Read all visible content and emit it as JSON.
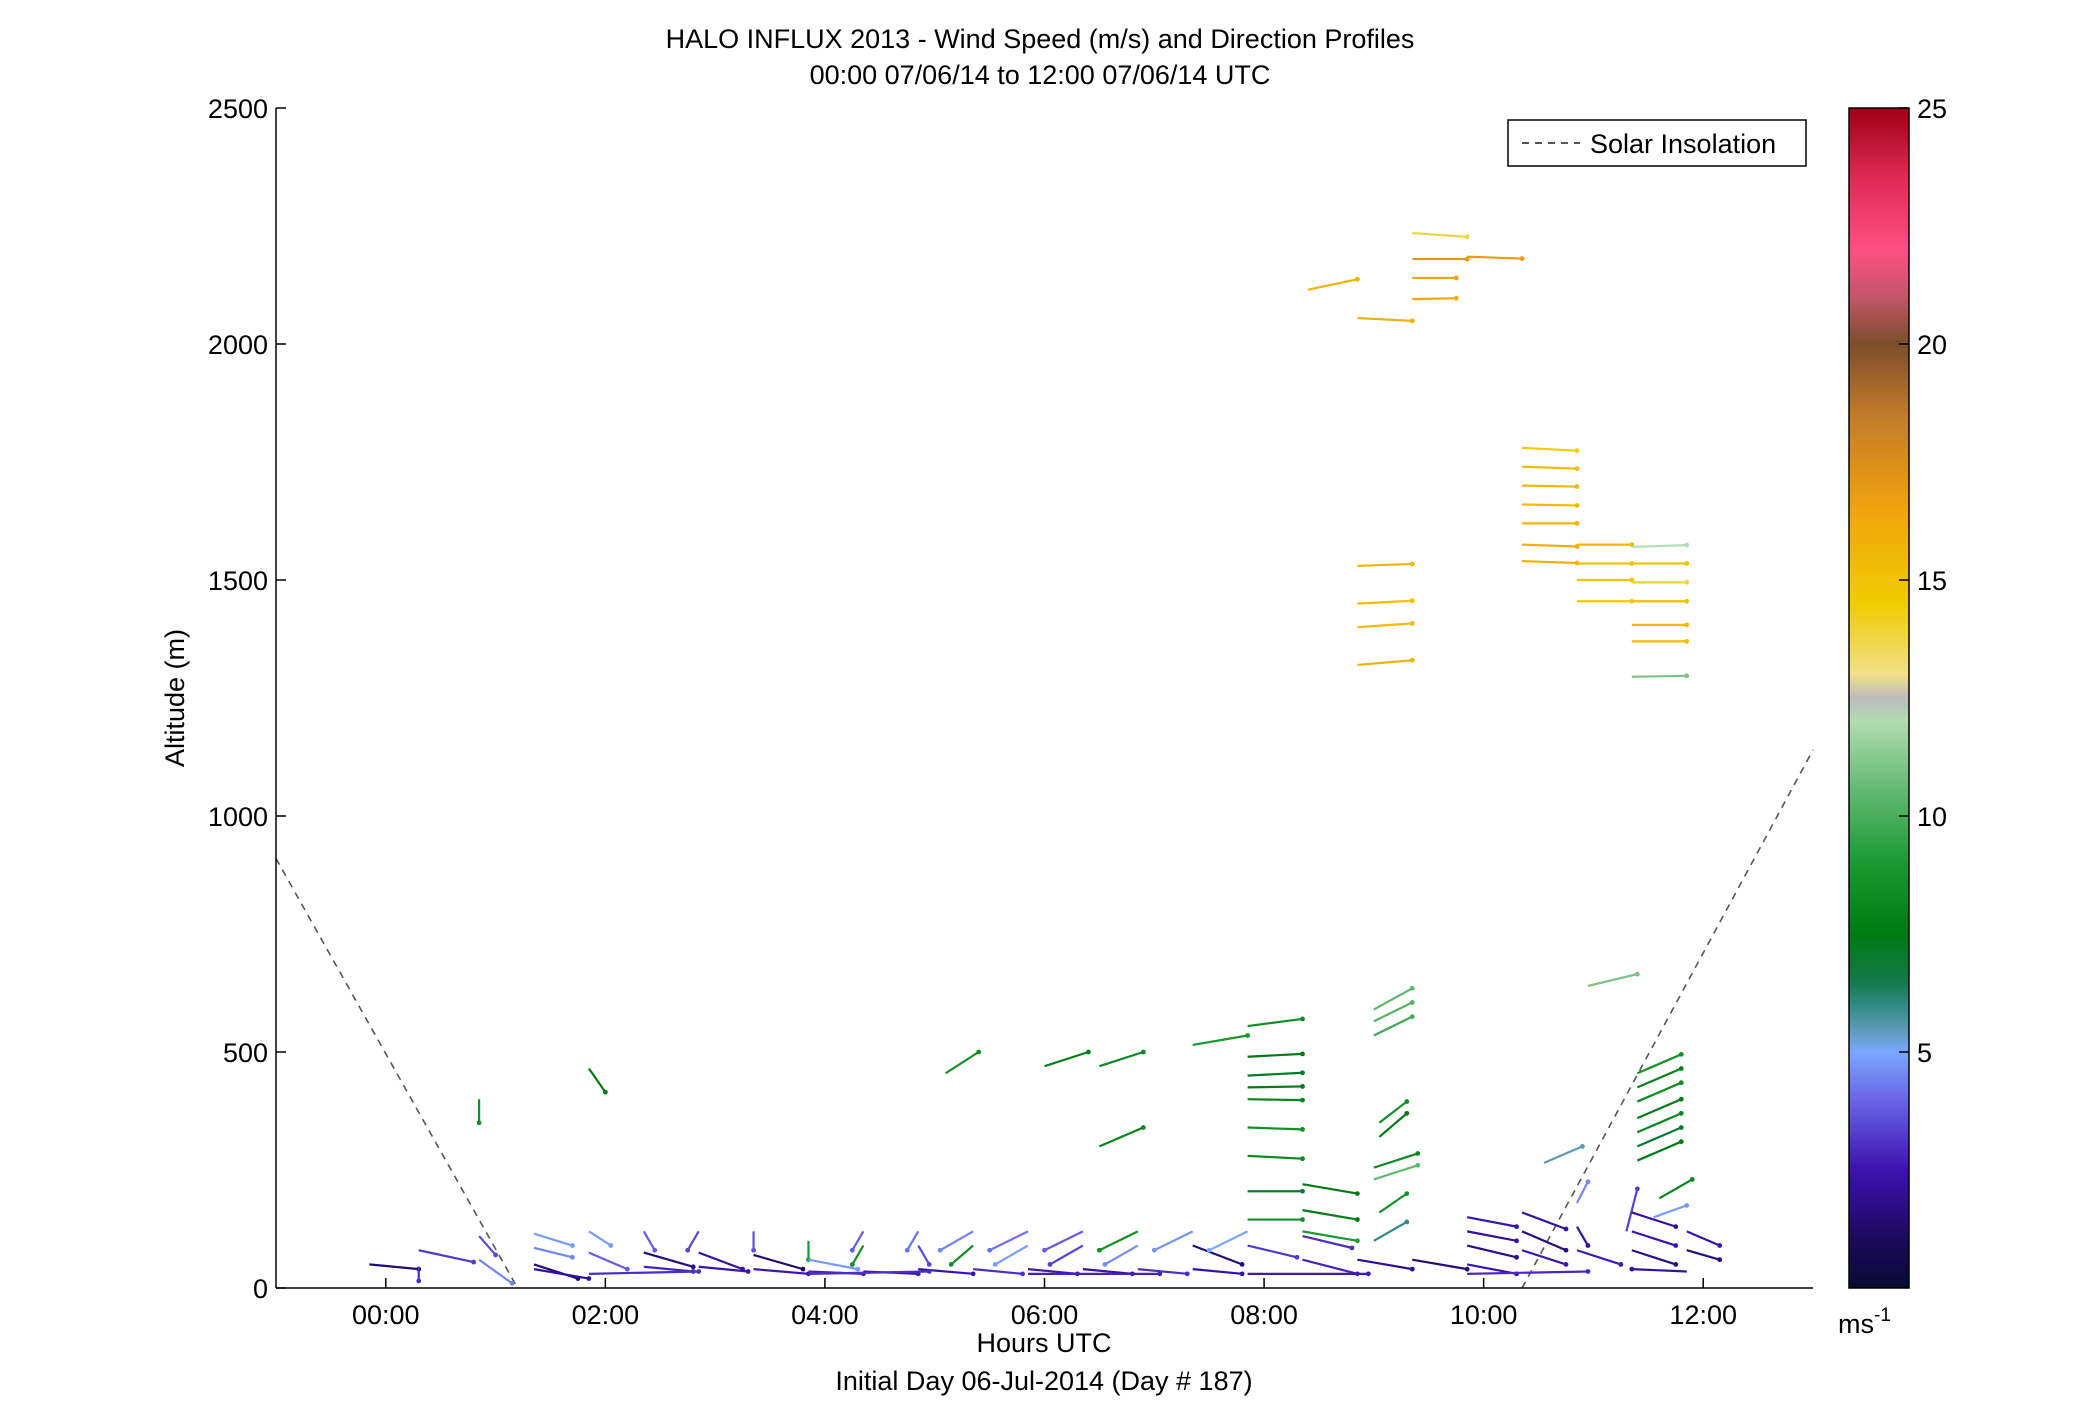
{
  "chart_data": {
    "type": "wind-barb-profile",
    "title": "HALO INFLUX 2013 - Wind Speed (m/s) and Direction Profiles",
    "subtitle": "00:00 07/06/14 to 12:00 07/06/14  UTC",
    "xlabel": "Hours UTC",
    "xlabel2": "Initial Day 06-Jul-2014 (Day # 187)",
    "ylabel": "Altitude (m)",
    "xlim_hours": [
      -1.0,
      13.0
    ],
    "ylim": [
      0,
      2500
    ],
    "x_ticks": [
      {
        "value": 0,
        "label": "00:00"
      },
      {
        "value": 2,
        "label": "02:00"
      },
      {
        "value": 4,
        "label": "04:00"
      },
      {
        "value": 6,
        "label": "06:00"
      },
      {
        "value": 8,
        "label": "08:00"
      },
      {
        "value": 10,
        "label": "10:00"
      },
      {
        "value": 12,
        "label": "12:00"
      }
    ],
    "y_ticks": [
      0,
      500,
      1000,
      1500,
      2000,
      2500
    ],
    "colorbar": {
      "min": 0,
      "max": 25,
      "ticks": [
        5,
        10,
        15,
        20,
        25
      ],
      "unit_label": "ms",
      "unit_exp": "-1"
    },
    "legend": {
      "label": "Solar Insolation",
      "position": "top-right",
      "style": "dashed",
      "color": "#555555"
    },
    "solar_insolation": [
      {
        "x": -1.0,
        "y": 910
      },
      {
        "x": 1.2,
        "y": 0
      },
      {
        "x": 10.35,
        "y": 0
      },
      {
        "x": 13.0,
        "y": 1140
      }
    ],
    "vectors": [
      {
        "t": 8.85,
        "alt": 2055,
        "dx": 0.5,
        "dy": -6,
        "spd": 15.8
      },
      {
        "t": 8.4,
        "alt": 2115,
        "dx": 0.45,
        "dy": 22,
        "spd": 15.8
      },
      {
        "t": 9.35,
        "alt": 2235,
        "dx": 0.5,
        "dy": -8,
        "spd": 13.8
      },
      {
        "t": 9.35,
        "alt": 2180,
        "dx": 0.5,
        "dy": 0,
        "spd": 17.0
      },
      {
        "t": 9.35,
        "alt": 2140,
        "dx": 0.4,
        "dy": 0,
        "spd": 16.5
      },
      {
        "t": 9.35,
        "alt": 2095,
        "dx": 0.4,
        "dy": 2,
        "spd": 16.0
      },
      {
        "t": 9.85,
        "alt": 2185,
        "dx": 0.5,
        "dy": -4,
        "spd": 16.8
      },
      {
        "t": 10.35,
        "alt": 1780,
        "dx": 0.5,
        "dy": -6,
        "spd": 14.5
      },
      {
        "t": 10.35,
        "alt": 1740,
        "dx": 0.5,
        "dy": -4,
        "spd": 15.2
      },
      {
        "t": 10.35,
        "alt": 1700,
        "dx": 0.5,
        "dy": -2,
        "spd": 15.5
      },
      {
        "t": 10.35,
        "alt": 1660,
        "dx": 0.5,
        "dy": -2,
        "spd": 15.3
      },
      {
        "t": 10.35,
        "alt": 1620,
        "dx": 0.5,
        "dy": 0,
        "spd": 15.6
      },
      {
        "t": 10.35,
        "alt": 1575,
        "dx": 0.5,
        "dy": -4,
        "spd": 16.0
      },
      {
        "t": 10.35,
        "alt": 1540,
        "dx": 0.5,
        "dy": -4,
        "spd": 15.8
      },
      {
        "t": 10.85,
        "alt": 1575,
        "dx": 0.5,
        "dy": 0,
        "spd": 15.5
      },
      {
        "t": 10.85,
        "alt": 1535,
        "dx": 0.5,
        "dy": 0,
        "spd": 15.0
      },
      {
        "t": 10.85,
        "alt": 1500,
        "dx": 0.5,
        "dy": 0,
        "spd": 14.8
      },
      {
        "t": 10.85,
        "alt": 1455,
        "dx": 0.5,
        "dy": 0,
        "spd": 14.6
      },
      {
        "t": 11.35,
        "alt": 1570,
        "dx": 0.5,
        "dy": 4,
        "spd": 12.0
      },
      {
        "t": 11.35,
        "alt": 1535,
        "dx": 0.5,
        "dy": 0,
        "spd": 15.0
      },
      {
        "t": 11.35,
        "alt": 1495,
        "dx": 0.5,
        "dy": 0,
        "spd": 14.0
      },
      {
        "t": 11.35,
        "alt": 1455,
        "dx": 0.5,
        "dy": 0,
        "spd": 15.2
      },
      {
        "t": 11.35,
        "alt": 1405,
        "dx": 0.5,
        "dy": 0,
        "spd": 15.5
      },
      {
        "t": 11.35,
        "alt": 1370,
        "dx": 0.5,
        "dy": 0,
        "spd": 15.3
      },
      {
        "t": 11.35,
        "alt": 1295,
        "dx": 0.5,
        "dy": 2,
        "spd": 11.0
      },
      {
        "t": 8.85,
        "alt": 1530,
        "dx": 0.5,
        "dy": 4,
        "spd": 15.5
      },
      {
        "t": 8.85,
        "alt": 1450,
        "dx": 0.5,
        "dy": 6,
        "spd": 15.2
      },
      {
        "t": 8.85,
        "alt": 1400,
        "dx": 0.5,
        "dy": 8,
        "spd": 15.4
      },
      {
        "t": 8.85,
        "alt": 1320,
        "dx": 0.5,
        "dy": 10,
        "spd": 15.7
      },
      {
        "t": 0.85,
        "alt": 400,
        "dx": 0.0,
        "dy": -50,
        "spd": 8.5
      },
      {
        "t": 1.85,
        "alt": 465,
        "dx": 0.15,
        "dy": -50,
        "spd": 7.5
      },
      {
        "t": 5.1,
        "alt": 455,
        "dx": 0.3,
        "dy": 45,
        "spd": 8.5
      },
      {
        "t": 6.0,
        "alt": 470,
        "dx": 0.4,
        "dy": 30,
        "spd": 7.8
      },
      {
        "t": 6.5,
        "alt": 470,
        "dx": 0.4,
        "dy": 30,
        "spd": 8.2
      },
      {
        "t": 7.35,
        "alt": 515,
        "dx": 0.5,
        "dy": 20,
        "spd": 8.8
      },
      {
        "t": 6.5,
        "alt": 300,
        "dx": 0.4,
        "dy": 40,
        "spd": 8.0
      },
      {
        "t": 7.85,
        "alt": 555,
        "dx": 0.5,
        "dy": 15,
        "spd": 8.4
      },
      {
        "t": 7.85,
        "alt": 490,
        "dx": 0.5,
        "dy": 6,
        "spd": 7.5
      },
      {
        "t": 7.85,
        "alt": 450,
        "dx": 0.5,
        "dy": 6,
        "spd": 7.2
      },
      {
        "t": 7.85,
        "alt": 425,
        "dx": 0.5,
        "dy": 2,
        "spd": 7.6
      },
      {
        "t": 7.85,
        "alt": 400,
        "dx": 0.5,
        "dy": -2,
        "spd": 8.0
      },
      {
        "t": 7.85,
        "alt": 340,
        "dx": 0.5,
        "dy": -4,
        "spd": 8.5
      },
      {
        "t": 7.85,
        "alt": 280,
        "dx": 0.5,
        "dy": -6,
        "spd": 8.2
      },
      {
        "t": 7.85,
        "alt": 205,
        "dx": 0.5,
        "dy": 0,
        "spd": 7.0
      },
      {
        "t": 7.85,
        "alt": 145,
        "dx": 0.5,
        "dy": 0,
        "spd": 8.6
      },
      {
        "t": 8.35,
        "alt": 220,
        "dx": 0.5,
        "dy": -20,
        "spd": 7.4
      },
      {
        "t": 8.35,
        "alt": 165,
        "dx": 0.5,
        "dy": -20,
        "spd": 7.7
      },
      {
        "t": 8.35,
        "alt": 120,
        "dx": 0.5,
        "dy": -20,
        "spd": 9.0
      },
      {
        "t": 9.0,
        "alt": 590,
        "dx": 0.35,
        "dy": 45,
        "spd": 10.5
      },
      {
        "t": 9.0,
        "alt": 565,
        "dx": 0.35,
        "dy": 40,
        "spd": 10.2
      },
      {
        "t": 9.0,
        "alt": 535,
        "dx": 0.35,
        "dy": 40,
        "spd": 9.8
      },
      {
        "t": 9.05,
        "alt": 350,
        "dx": 0.25,
        "dy": 45,
        "spd": 8.5
      },
      {
        "t": 9.05,
        "alt": 320,
        "dx": 0.25,
        "dy": 50,
        "spd": 7.5
      },
      {
        "t": 9.0,
        "alt": 255,
        "dx": 0.4,
        "dy": 30,
        "spd": 8.2
      },
      {
        "t": 9.0,
        "alt": 230,
        "dx": 0.4,
        "dy": 30,
        "spd": 10.5
      },
      {
        "t": 9.05,
        "alt": 160,
        "dx": 0.25,
        "dy": 40,
        "spd": 8.6
      },
      {
        "t": 9.0,
        "alt": 100,
        "dx": 0.3,
        "dy": 40,
        "spd": 6.0
      },
      {
        "t": 10.95,
        "alt": 640,
        "dx": 0.45,
        "dy": 25,
        "spd": 11.0
      },
      {
        "t": 10.55,
        "alt": 265,
        "dx": 0.35,
        "dy": 35,
        "spd": 5.5
      },
      {
        "t": 10.85,
        "alt": 180,
        "dx": 0.1,
        "dy": 45,
        "spd": 4.5
      },
      {
        "t": 11.4,
        "alt": 455,
        "dx": 0.4,
        "dy": 40,
        "spd": 8.6
      },
      {
        "t": 11.4,
        "alt": 425,
        "dx": 0.4,
        "dy": 40,
        "spd": 7.8
      },
      {
        "t": 11.4,
        "alt": 395,
        "dx": 0.4,
        "dy": 40,
        "spd": 8.3
      },
      {
        "t": 11.4,
        "alt": 360,
        "dx": 0.4,
        "dy": 40,
        "spd": 7.4
      },
      {
        "t": 11.4,
        "alt": 330,
        "dx": 0.4,
        "dy": 40,
        "spd": 8.0
      },
      {
        "t": 11.4,
        "alt": 300,
        "dx": 0.4,
        "dy": 40,
        "spd": 7.0
      },
      {
        "t": 11.4,
        "alt": 270,
        "dx": 0.4,
        "dy": 40,
        "spd": 7.5
      },
      {
        "t": 11.6,
        "alt": 190,
        "dx": 0.3,
        "dy": 40,
        "spd": 8.0
      },
      {
        "t": 11.55,
        "alt": 150,
        "dx": 0.3,
        "dy": 25,
        "spd": 4.8
      },
      {
        "t": 11.3,
        "alt": 120,
        "dx": 0.1,
        "dy": 90,
        "spd": 3.3
      },
      {
        "t": -0.15,
        "alt": 50,
        "dx": 0.45,
        "dy": -10,
        "spd": 1.3
      },
      {
        "t": 0.3,
        "alt": 45,
        "dx": 0.0,
        "dy": -30,
        "spd": 3.0
      },
      {
        "t": 0.3,
        "alt": 80,
        "dx": 0.5,
        "dy": -25,
        "spd": 3.2
      },
      {
        "t": 0.85,
        "alt": 110,
        "dx": 0.15,
        "dy": -40,
        "spd": 3.5
      },
      {
        "t": 0.85,
        "alt": 60,
        "dx": 0.3,
        "dy": -50,
        "spd": 4.5
      },
      {
        "t": 1.35,
        "alt": 115,
        "dx": 0.35,
        "dy": -25,
        "spd": 4.8
      },
      {
        "t": 1.35,
        "alt": 85,
        "dx": 0.35,
        "dy": -20,
        "spd": 4.5
      },
      {
        "t": 1.35,
        "alt": 50,
        "dx": 0.4,
        "dy": -30,
        "spd": 1.5
      },
      {
        "t": 1.85,
        "alt": 120,
        "dx": 0.2,
        "dy": -30,
        "spd": 4.8
      },
      {
        "t": 1.85,
        "alt": 75,
        "dx": 0.35,
        "dy": -35,
        "spd": 3.8
      },
      {
        "t": 1.35,
        "alt": 40,
        "dx": 0.5,
        "dy": -20,
        "spd": 2.2
      },
      {
        "t": 2.35,
        "alt": 120,
        "dx": 0.1,
        "dy": -40,
        "spd": 3.8
      },
      {
        "t": 2.35,
        "alt": 75,
        "dx": 0.45,
        "dy": -30,
        "spd": 1.5
      },
      {
        "t": 2.35,
        "alt": 45,
        "dx": 0.45,
        "dy": -10,
        "spd": 2.8
      },
      {
        "t": 2.85,
        "alt": 120,
        "dx": -0.1,
        "dy": -40,
        "spd": 3.4
      },
      {
        "t": 2.85,
        "alt": 75,
        "dx": 0.4,
        "dy": -35,
        "spd": 2.2
      },
      {
        "t": 2.85,
        "alt": 45,
        "dx": 0.45,
        "dy": -10,
        "spd": 2.5
      },
      {
        "t": 3.35,
        "alt": 120,
        "dx": 0.0,
        "dy": -40,
        "spd": 3.6
      },
      {
        "t": 3.35,
        "alt": 70,
        "dx": 0.45,
        "dy": -30,
        "spd": 1.3
      },
      {
        "t": 3.35,
        "alt": 40,
        "dx": 0.5,
        "dy": -10,
        "spd": 2.5
      },
      {
        "t": 3.85,
        "alt": 100,
        "dx": 0.0,
        "dy": -40,
        "spd": 9.0
      },
      {
        "t": 3.85,
        "alt": 60,
        "dx": 0.45,
        "dy": -20,
        "spd": 4.8
      },
      {
        "t": 3.85,
        "alt": 35,
        "dx": 0.5,
        "dy": -5,
        "spd": 2.8
      },
      {
        "t": 4.35,
        "alt": 120,
        "dx": -0.1,
        "dy": -40,
        "spd": 3.8
      },
      {
        "t": 4.35,
        "alt": 90,
        "dx": -0.1,
        "dy": -40,
        "spd": 8.5
      },
      {
        "t": 4.35,
        "alt": 35,
        "dx": 0.5,
        "dy": -5,
        "spd": 2.6
      },
      {
        "t": 4.85,
        "alt": 120,
        "dx": -0.1,
        "dy": -40,
        "spd": 4.2
      },
      {
        "t": 4.85,
        "alt": 90,
        "dx": 0.1,
        "dy": -40,
        "spd": 3.5
      },
      {
        "t": 4.85,
        "alt": 40,
        "dx": 0.5,
        "dy": -10,
        "spd": 2.5
      },
      {
        "t": 5.35,
        "alt": 120,
        "dx": -0.3,
        "dy": -40,
        "spd": 4.5
      },
      {
        "t": 5.35,
        "alt": 90,
        "dx": -0.2,
        "dy": -40,
        "spd": 8.5
      },
      {
        "t": 5.35,
        "alt": 40,
        "dx": 0.45,
        "dy": -10,
        "spd": 3.0
      },
      {
        "t": 5.85,
        "alt": 120,
        "dx": -0.35,
        "dy": -40,
        "spd": 4.2
      },
      {
        "t": 5.85,
        "alt": 90,
        "dx": -0.3,
        "dy": -40,
        "spd": 4.8
      },
      {
        "t": 5.85,
        "alt": 40,
        "dx": 0.45,
        "dy": -10,
        "spd": 2.6
      },
      {
        "t": 6.35,
        "alt": 120,
        "dx": -0.35,
        "dy": -40,
        "spd": 3.8
      },
      {
        "t": 6.35,
        "alt": 90,
        "dx": -0.3,
        "dy": -40,
        "spd": 3.3
      },
      {
        "t": 6.35,
        "alt": 40,
        "dx": 0.45,
        "dy": -10,
        "spd": 2.3
      },
      {
        "t": 6.85,
        "alt": 120,
        "dx": -0.35,
        "dy": -40,
        "spd": 8.5
      },
      {
        "t": 6.85,
        "alt": 90,
        "dx": -0.3,
        "dy": -40,
        "spd": 4.6
      },
      {
        "t": 6.85,
        "alt": 40,
        "dx": 0.45,
        "dy": -10,
        "spd": 3.0
      },
      {
        "t": 7.35,
        "alt": 120,
        "dx": -0.35,
        "dy": -40,
        "spd": 4.7
      },
      {
        "t": 7.35,
        "alt": 90,
        "dx": 0.45,
        "dy": -40,
        "spd": 1.5
      },
      {
        "t": 7.35,
        "alt": 40,
        "dx": 0.45,
        "dy": -10,
        "spd": 2.3
      },
      {
        "t": 7.85,
        "alt": 120,
        "dx": -0.35,
        "dy": -40,
        "spd": 5.0
      },
      {
        "t": 7.85,
        "alt": 90,
        "dx": 0.45,
        "dy": -25,
        "spd": 3.2
      },
      {
        "t": 8.35,
        "alt": 110,
        "dx": 0.45,
        "dy": -25,
        "spd": 3.0
      },
      {
        "t": 8.35,
        "alt": 60,
        "dx": 0.5,
        "dy": -30,
        "spd": 2.8
      },
      {
        "t": 8.85,
        "alt": 60,
        "dx": 0.5,
        "dy": -20,
        "spd": 2.0
      },
      {
        "t": 9.35,
        "alt": 60,
        "dx": 0.5,
        "dy": -20,
        "spd": 1.5
      },
      {
        "t": 9.85,
        "alt": 150,
        "dx": 0.45,
        "dy": -20,
        "spd": 2.5
      },
      {
        "t": 9.85,
        "alt": 120,
        "dx": 0.45,
        "dy": -20,
        "spd": 2.2
      },
      {
        "t": 9.85,
        "alt": 90,
        "dx": 0.45,
        "dy": -25,
        "spd": 1.8
      },
      {
        "t": 9.85,
        "alt": 50,
        "dx": 0.45,
        "dy": -20,
        "spd": 2.5
      },
      {
        "t": 10.35,
        "alt": 160,
        "dx": 0.4,
        "dy": -35,
        "spd": 2.3
      },
      {
        "t": 10.35,
        "alt": 120,
        "dx": 0.4,
        "dy": -40,
        "spd": 1.5
      },
      {
        "t": 10.35,
        "alt": 80,
        "dx": 0.4,
        "dy": -30,
        "spd": 2.5
      },
      {
        "t": 10.85,
        "alt": 130,
        "dx": 0.1,
        "dy": -40,
        "spd": 2.2
      },
      {
        "t": 10.85,
        "alt": 80,
        "dx": 0.4,
        "dy": -30,
        "spd": 2.6
      },
      {
        "t": 11.35,
        "alt": 160,
        "dx": 0.4,
        "dy": -30,
        "spd": 2.2
      },
      {
        "t": 11.35,
        "alt": 120,
        "dx": 0.4,
        "dy": -30,
        "spd": 2.5
      },
      {
        "t": 11.35,
        "alt": 80,
        "dx": 0.4,
        "dy": -30,
        "spd": 1.8
      },
      {
        "t": 11.85,
        "alt": 120,
        "dx": 0.3,
        "dy": -30,
        "spd": 2.4
      },
      {
        "t": 11.85,
        "alt": 80,
        "dx": 0.3,
        "dy": -20,
        "spd": 1.6
      },
      {
        "t": 11.85,
        "alt": 35,
        "dx": -0.5,
        "dy": 5,
        "spd": 2.2
      },
      {
        "t": 1.85,
        "alt": 30,
        "dx": 1.0,
        "dy": 5,
        "spd": 3.0
      },
      {
        "t": 3.85,
        "alt": 30,
        "dx": 1.1,
        "dy": 5,
        "spd": 3.0
      },
      {
        "t": 5.85,
        "alt": 30,
        "dx": 1.2,
        "dy": 0,
        "spd": 2.8
      },
      {
        "t": 7.85,
        "alt": 30,
        "dx": 1.1,
        "dy": 0,
        "spd": 2.6
      },
      {
        "t": 9.85,
        "alt": 30,
        "dx": 1.1,
        "dy": 5,
        "spd": 2.9
      }
    ]
  }
}
